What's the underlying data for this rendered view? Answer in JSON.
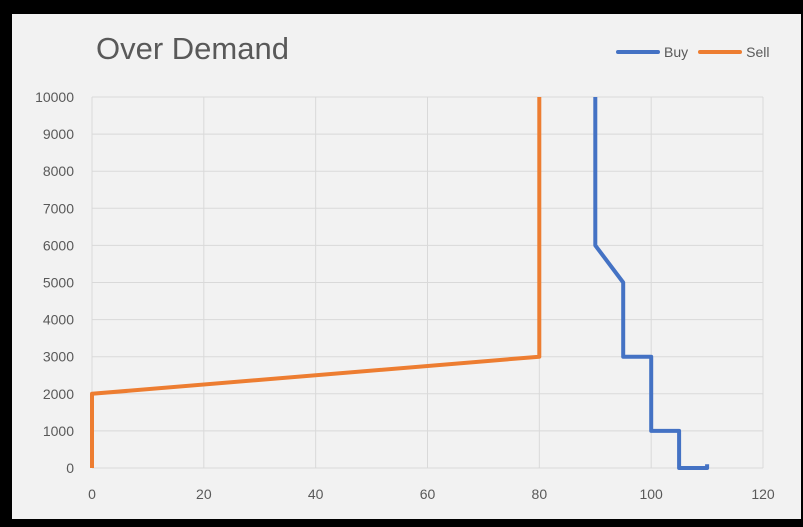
{
  "chart_data": {
    "type": "line",
    "title": "Over Demand",
    "xlabel": "",
    "ylabel": "",
    "xlim": [
      0,
      120
    ],
    "ylim": [
      0,
      10000
    ],
    "x_ticks": [
      "0",
      "20",
      "40",
      "60",
      "80",
      "100",
      "120"
    ],
    "y_ticks": [
      "0",
      "1000",
      "2000",
      "3000",
      "4000",
      "5000",
      "6000",
      "7000",
      "8000",
      "9000",
      "10000"
    ],
    "grid": true,
    "legend_position": "top-right",
    "series": [
      {
        "name": "Buy",
        "color": "#4472c4",
        "points": [
          [
            110,
            100
          ],
          [
            110,
            0
          ],
          [
            105,
            0
          ],
          [
            105,
            500
          ],
          [
            105,
            1000
          ],
          [
            100,
            1000
          ],
          [
            100,
            2000
          ],
          [
            100,
            3000
          ],
          [
            95,
            3000
          ],
          [
            95,
            4000
          ],
          [
            95,
            5000
          ],
          [
            90,
            6000
          ],
          [
            90,
            10000
          ]
        ]
      },
      {
        "name": "Sell",
        "color": "#ed7d31",
        "points": [
          [
            0,
            0
          ],
          [
            0,
            2000
          ],
          [
            80,
            3000
          ],
          [
            80,
            10000
          ]
        ]
      }
    ]
  }
}
